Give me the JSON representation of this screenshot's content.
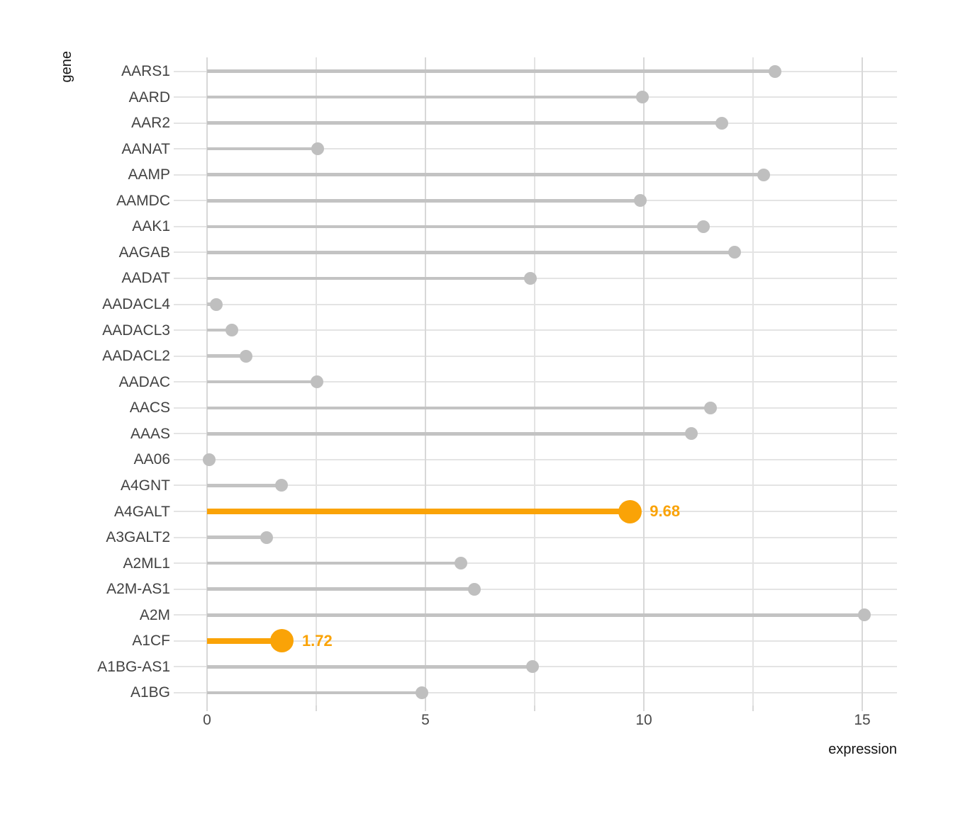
{
  "chart_data": {
    "type": "bar",
    "variant": "horizontal-lollipop",
    "title": "",
    "xlabel": "expression",
    "ylabel": "gene",
    "xlim": [
      0,
      15.8
    ],
    "x_major_ticks": [
      0,
      5,
      10,
      15
    ],
    "x_minor_ticks": [
      2.5,
      7.5,
      12.5
    ],
    "grid": "major-and-minor-vertical, one-horizontal-gridline-per-category",
    "legend_position": "none",
    "categories": [
      "AARS1",
      "AARD",
      "AAR2",
      "AANAT",
      "AAMP",
      "AAMDC",
      "AAK1",
      "AAGAB",
      "AADAT",
      "AADACL4",
      "AADACL3",
      "AADACL2",
      "AADAC",
      "AACS",
      "AAAS",
      "AA06",
      "A4GNT",
      "A4GALT",
      "A3GALT2",
      "A2ML1",
      "A2M-AS1",
      "A2M",
      "A1CF",
      "A1BG-AS1",
      "A1BG"
    ],
    "values": [
      13.0,
      9.97,
      11.79,
      2.53,
      12.74,
      9.92,
      11.36,
      12.08,
      7.4,
      0.21,
      0.57,
      0.89,
      2.52,
      11.53,
      11.09,
      0.05,
      1.7,
      9.68,
      1.36,
      5.81,
      6.12,
      15.05,
      1.72,
      7.45,
      4.92
    ],
    "highlighted": {
      "A4GALT": "9.68",
      "A1CF": "1.72"
    },
    "colors": {
      "stem_default": "#c3c3c3",
      "dot_default": "#bfbfbf",
      "highlight": "#faa307",
      "gridline_major": "#d8d8d8",
      "gridline_minor": "#e3e3e3",
      "row_gridline": "#e4e4e4",
      "axis_text": "#4a4a4a",
      "category_text": "#424242",
      "title_text": "#141414"
    }
  }
}
